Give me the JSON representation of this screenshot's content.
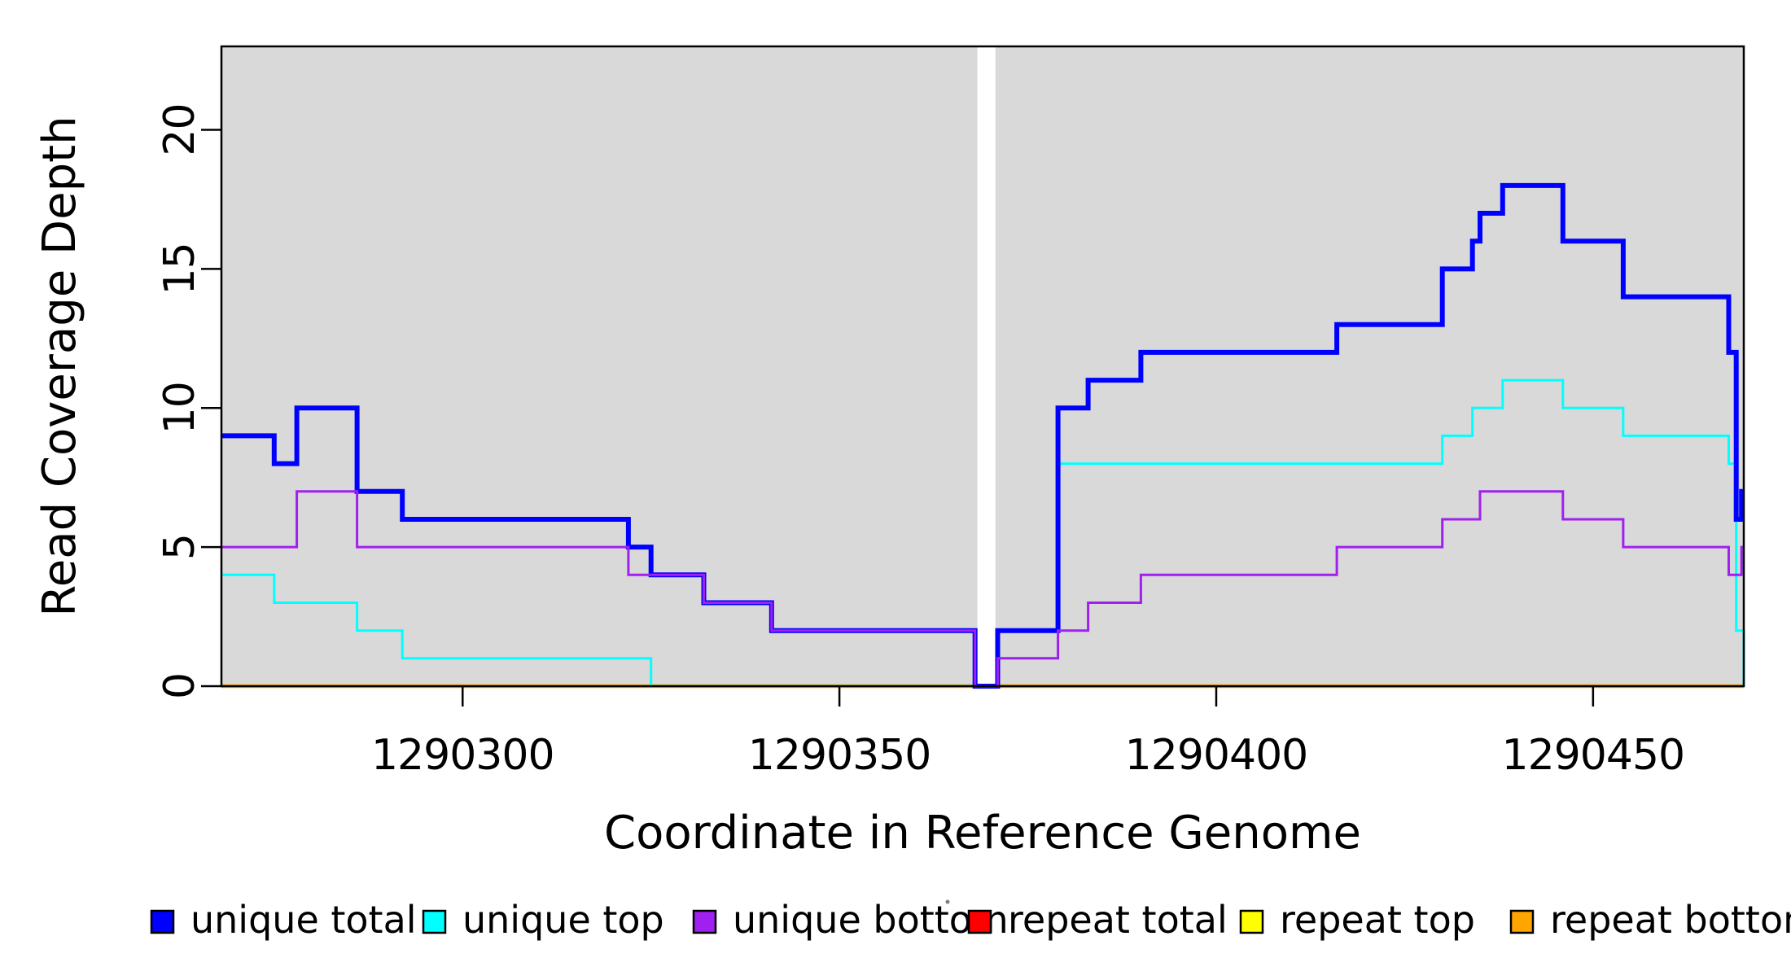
{
  "chart_data": {
    "type": "line",
    "subtype": "step-after",
    "title": "",
    "xlabel": "Coordinate in Reference Genome",
    "ylabel": "Read Coverage Depth",
    "xlim": [
      1290268,
      1290470
    ],
    "ylim": [
      0,
      23
    ],
    "xticks": [
      1290300,
      1290350,
      1290400,
      1290450
    ],
    "yticks": [
      0,
      5,
      10,
      15,
      20
    ],
    "grid": false,
    "plot_bg_color": "#d9d9d9",
    "frame_color": "#000000",
    "gap_region": {
      "x0": 1290368.3,
      "x1": 1290370.7,
      "color": "#ffffff"
    },
    "legend_position": "bottom",
    "series": [
      {
        "name": "repeat total",
        "color": "#ff0000",
        "width": 4,
        "points": [
          [
            1290268,
            0
          ],
          [
            1290470,
            0
          ]
        ]
      },
      {
        "name": "repeat top",
        "color": "#ffff00",
        "width": 4,
        "points": [
          [
            1290268,
            0
          ],
          [
            1290470,
            0
          ]
        ]
      },
      {
        "name": "repeat bottom",
        "color": "#ffa500",
        "width": 4.5,
        "points": [
          [
            1290268,
            0
          ],
          [
            1290470,
            0
          ]
        ]
      },
      {
        "name": "unique top",
        "color": "#00ffff",
        "width": 3,
        "points": [
          [
            1290268,
            4
          ],
          [
            1290275,
            3
          ],
          [
            1290286,
            2
          ],
          [
            1290292,
            1
          ],
          [
            1290325,
            0
          ],
          [
            1290371,
            1
          ],
          [
            1290379,
            8
          ],
          [
            1290430,
            9
          ],
          [
            1290434,
            10
          ],
          [
            1290438,
            11
          ],
          [
            1290446,
            10
          ],
          [
            1290454,
            9
          ],
          [
            1290468,
            8
          ],
          [
            1290469,
            2
          ],
          [
            1290470,
            0
          ]
        ]
      },
      {
        "name": "unique total",
        "color": "#0000ff",
        "width": 6,
        "points": [
          [
            1290268,
            9
          ],
          [
            1290275,
            8
          ],
          [
            1290278,
            10
          ],
          [
            1290286,
            7
          ],
          [
            1290292,
            6
          ],
          [
            1290322,
            5
          ],
          [
            1290325,
            4
          ],
          [
            1290332,
            3
          ],
          [
            1290341,
            2
          ],
          [
            1290368,
            0
          ],
          [
            1290371,
            2
          ],
          [
            1290379,
            10
          ],
          [
            1290383,
            11
          ],
          [
            1290390,
            12
          ],
          [
            1290416,
            13
          ],
          [
            1290430,
            15
          ],
          [
            1290434,
            16
          ],
          [
            1290435,
            17
          ],
          [
            1290438,
            18
          ],
          [
            1290446,
            16
          ],
          [
            1290454,
            14
          ],
          [
            1290468,
            12
          ],
          [
            1290469,
            6
          ],
          [
            1290469.7,
            7
          ]
        ]
      },
      {
        "name": "unique bottom",
        "color": "#a020f0",
        "width": 3,
        "points": [
          [
            1290268,
            5
          ],
          [
            1290278,
            7
          ],
          [
            1290286,
            5
          ],
          [
            1290322,
            4
          ],
          [
            1290332,
            3
          ],
          [
            1290341,
            2
          ],
          [
            1290368,
            0
          ],
          [
            1290371,
            1
          ],
          [
            1290379,
            2
          ],
          [
            1290383,
            3
          ],
          [
            1290390,
            4
          ],
          [
            1290416,
            5
          ],
          [
            1290430,
            6
          ],
          [
            1290435,
            7
          ],
          [
            1290446,
            6
          ],
          [
            1290454,
            5
          ],
          [
            1290468,
            4
          ],
          [
            1290469.7,
            5
          ]
        ]
      }
    ],
    "legend": [
      {
        "label": "unique total",
        "color": "#0000ff"
      },
      {
        "label": "unique top",
        "color": "#00ffff"
      },
      {
        "label": "unique bottom",
        "color": "#a020f0"
      },
      {
        "label": "repeat total",
        "color": "#ff0000"
      },
      {
        "label": "repeat top",
        "color": "#ffff00"
      },
      {
        "label": "repeat bottom",
        "color": "#ffa500"
      }
    ]
  }
}
